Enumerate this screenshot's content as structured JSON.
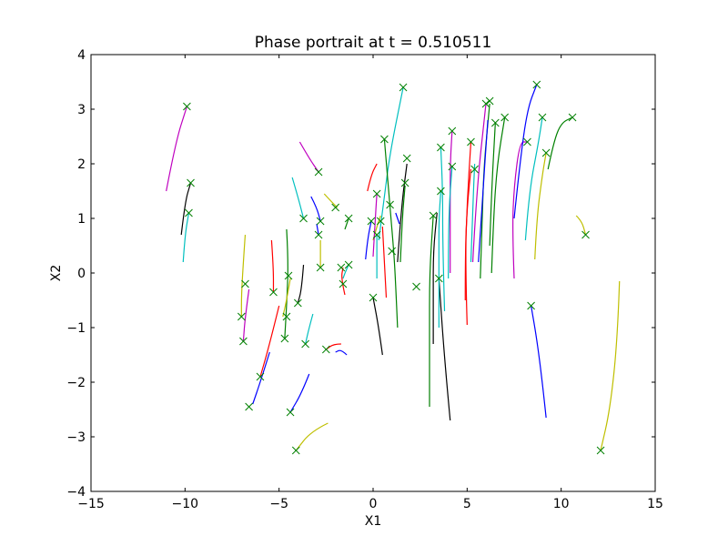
{
  "chart_data": {
    "type": "line",
    "title": "Phase portrait at t = 0.510511",
    "xlabel": "X1",
    "ylabel": "X2",
    "xlim": [
      -15,
      15
    ],
    "ylim": [
      -4,
      4
    ],
    "xticks": [
      -15,
      -10,
      -5,
      0,
      5,
      10,
      15
    ],
    "yticks": [
      -4,
      -3,
      -2,
      -1,
      0,
      1,
      2,
      3,
      4
    ],
    "xtick_labels": [
      "−15",
      "−10",
      "−5",
      "0",
      "5",
      "10",
      "15"
    ],
    "ytick_labels": [
      "−4",
      "−3",
      "−2",
      "−1",
      "0",
      "1",
      "2",
      "3",
      "4"
    ],
    "grid": false,
    "marker_color": "#008000",
    "series": [
      {
        "color": "#bf00bf",
        "points": [
          [
            -11.0,
            1.5
          ],
          [
            -10.5,
            2.4
          ],
          [
            -9.9,
            3.05
          ]
        ]
      },
      {
        "color": "#000000",
        "points": [
          [
            -10.2,
            0.7
          ],
          [
            -10.0,
            1.3
          ],
          [
            -9.7,
            1.65
          ]
        ]
      },
      {
        "color": "#00bfbf",
        "points": [
          [
            -10.1,
            0.2
          ],
          [
            -10.0,
            0.7
          ],
          [
            -9.8,
            1.1
          ]
        ]
      },
      {
        "color": "#bfbf00",
        "points": [
          [
            -6.8,
            0.7
          ],
          [
            -6.9,
            0.2
          ],
          [
            -7.0,
            -0.4
          ],
          [
            -7.0,
            -0.8
          ]
        ]
      },
      {
        "color": "#bf00bf",
        "points": [
          [
            -6.6,
            -0.3
          ],
          [
            -6.8,
            -0.8
          ],
          [
            -6.9,
            -1.25
          ]
        ]
      },
      {
        "color": "#ff0000",
        "points": [
          [
            -5.4,
            0.6
          ],
          [
            -5.3,
            0.1
          ],
          [
            -5.3,
            -0.35
          ]
        ]
      },
      {
        "color": "#ff0000",
        "points": [
          [
            -5.0,
            -0.6
          ],
          [
            -5.5,
            -1.3
          ],
          [
            -6.0,
            -1.9
          ]
        ]
      },
      {
        "color": "#0000ff",
        "points": [
          [
            -5.5,
            -1.45
          ],
          [
            -6.0,
            -2.0
          ],
          [
            -6.4,
            -2.4
          ]
        ]
      },
      {
        "color": "#008000",
        "points": [
          [
            -4.6,
            0.8
          ],
          [
            -4.5,
            0.2
          ],
          [
            -4.6,
            -0.6
          ],
          [
            -4.7,
            -1.2
          ]
        ]
      },
      {
        "color": "#bfbf00",
        "points": [
          [
            -4.4,
            -0.1
          ],
          [
            -4.6,
            -0.5
          ],
          [
            -4.8,
            -0.8
          ]
        ]
      },
      {
        "color": "#000000",
        "points": [
          [
            -3.7,
            0.15
          ],
          [
            -3.8,
            -0.3
          ],
          [
            -4.0,
            -0.55
          ]
        ]
      },
      {
        "color": "#00bfbf",
        "points": [
          [
            -4.3,
            1.75
          ],
          [
            -4.0,
            1.4
          ],
          [
            -3.7,
            1.0
          ]
        ]
      },
      {
        "color": "#bf00bf",
        "points": [
          [
            -3.9,
            2.4
          ],
          [
            -3.4,
            2.1
          ],
          [
            -2.9,
            1.85
          ]
        ]
      },
      {
        "color": "#0000ff",
        "points": [
          [
            -3.3,
            1.4
          ],
          [
            -3.0,
            1.2
          ],
          [
            -2.8,
            0.95
          ]
        ]
      },
      {
        "color": "#0000ff",
        "points": [
          [
            -3.0,
            0.9
          ],
          [
            -2.9,
            0.7
          ]
        ]
      },
      {
        "color": "#bfbf00",
        "points": [
          [
            -2.8,
            0.6
          ],
          [
            -2.8,
            0.3
          ],
          [
            -2.8,
            0.1
          ]
        ]
      },
      {
        "color": "#00bfbf",
        "points": [
          [
            -3.2,
            -0.75
          ],
          [
            -3.4,
            -1.0
          ],
          [
            -3.6,
            -1.3
          ]
        ]
      },
      {
        "color": "#0000ff",
        "points": [
          [
            -3.4,
            -1.85
          ],
          [
            -3.8,
            -2.2
          ],
          [
            -4.4,
            -2.55
          ]
        ]
      },
      {
        "color": "#bfbf00",
        "points": [
          [
            -2.4,
            -2.75
          ],
          [
            -3.3,
            -2.9
          ],
          [
            -4.1,
            -3.25
          ]
        ]
      },
      {
        "color": "#ff0000",
        "points": [
          [
            -1.7,
            -1.3
          ],
          [
            -2.1,
            -1.3
          ],
          [
            -2.5,
            -1.4
          ]
        ]
      },
      {
        "color": "#0000ff",
        "points": [
          [
            -1.4,
            -1.5
          ],
          [
            -1.7,
            -1.4
          ],
          [
            -2.0,
            -1.45
          ]
        ]
      },
      {
        "color": "#bfbf00",
        "points": [
          [
            -2.6,
            1.45
          ],
          [
            -2.2,
            1.3
          ],
          [
            -1.9,
            1.2
          ]
        ]
      },
      {
        "color": "#008000",
        "points": [
          [
            -1.5,
            0.8
          ],
          [
            -1.3,
            1.0
          ]
        ]
      },
      {
        "color": "#ff0000",
        "points": [
          [
            -1.5,
            -0.4
          ],
          [
            -1.7,
            -0.1
          ],
          [
            -1.6,
            0.1
          ]
        ]
      },
      {
        "color": "#00bfbf",
        "points": [
          [
            -1.6,
            -0.1
          ],
          [
            -1.5,
            0.0
          ],
          [
            -1.3,
            0.15
          ]
        ]
      },
      {
        "color": "#0000ff",
        "points": [
          [
            -0.4,
            0.25
          ],
          [
            -0.3,
            0.6
          ],
          [
            -0.1,
            0.95
          ]
        ]
      },
      {
        "color": "#ff0000",
        "points": [
          [
            -0.3,
            1.5
          ],
          [
            -0.1,
            1.8
          ],
          [
            0.2,
            2.0
          ]
        ]
      },
      {
        "color": "#bfbf00",
        "points": [
          [
            0.0,
            0.6
          ],
          [
            0.2,
            0.85
          ],
          [
            0.4,
            1.05
          ]
        ]
      },
      {
        "color": "#000000",
        "points": [
          [
            0.5,
            -1.5
          ],
          [
            0.3,
            -1.0
          ],
          [
            0.0,
            -0.45
          ]
        ]
      },
      {
        "color": "#00bfbf",
        "points": [
          [
            0.2,
            -0.1
          ],
          [
            0.2,
            0.3
          ],
          [
            0.2,
            0.7
          ]
        ]
      },
      {
        "color": "#ff0000",
        "points": [
          [
            0.7,
            -0.45
          ],
          [
            0.6,
            0.2
          ],
          [
            0.5,
            0.85
          ]
        ]
      },
      {
        "color": "#bf00bf",
        "points": [
          [
            0.0,
            0.3
          ],
          [
            0.1,
            0.9
          ],
          [
            0.2,
            1.45
          ]
        ]
      },
      {
        "color": "#00bfbf",
        "points": [
          [
            0.3,
            0.6
          ],
          [
            0.6,
            1.4
          ],
          [
            0.9,
            2.2
          ],
          [
            1.6,
            3.4
          ]
        ]
      },
      {
        "color": "#008000",
        "points": [
          [
            1.3,
            -1.0
          ],
          [
            1.2,
            -0.2
          ],
          [
            1.1,
            0.4
          ],
          [
            0.9,
            1.2
          ],
          [
            0.6,
            2.45
          ]
        ]
      },
      {
        "color": "#000000",
        "points": [
          [
            1.3,
            0.2
          ],
          [
            1.5,
            1.2
          ],
          [
            1.8,
            2.0
          ]
        ]
      },
      {
        "color": "#0000ff",
        "points": [
          [
            1.4,
            0.9
          ],
          [
            1.2,
            1.1
          ]
        ]
      },
      {
        "color": "#008000",
        "points": [
          [
            1.45,
            0.2
          ],
          [
            1.55,
            1.0
          ],
          [
            1.7,
            1.6
          ]
        ]
      },
      {
        "color": "#008000",
        "points": [
          [
            3.0,
            -2.45
          ],
          [
            3.0,
            -1.2
          ],
          [
            3.0,
            0.0
          ],
          [
            3.2,
            1.05
          ]
        ]
      },
      {
        "color": "#000000",
        "points": [
          [
            3.2,
            -1.3
          ],
          [
            3.2,
            -0.4
          ],
          [
            3.2,
            0.4
          ],
          [
            3.4,
            1.1
          ]
        ]
      },
      {
        "color": "#000000",
        "points": [
          [
            4.1,
            -2.7
          ],
          [
            3.8,
            -1.6
          ],
          [
            3.5,
            -0.1
          ]
        ]
      },
      {
        "color": "#00bfbf",
        "points": [
          [
            3.5,
            -1.0
          ],
          [
            3.5,
            0.2
          ],
          [
            3.5,
            1.0
          ],
          [
            3.6,
            1.5
          ]
        ]
      },
      {
        "color": "#00bfbf",
        "points": [
          [
            3.8,
            -0.7
          ],
          [
            3.7,
            0.5
          ],
          [
            3.7,
            1.5
          ],
          [
            3.6,
            2.3
          ]
        ]
      },
      {
        "color": "#bf00bf",
        "points": [
          [
            4.1,
            0.0
          ],
          [
            4.1,
            1.0
          ],
          [
            4.1,
            2.0
          ],
          [
            4.2,
            2.6
          ]
        ]
      },
      {
        "color": "#00bfbf",
        "points": [
          [
            4.0,
            -0.1
          ],
          [
            4.0,
            1.0
          ],
          [
            4.2,
            1.95
          ]
        ]
      },
      {
        "color": "#ff0000",
        "points": [
          [
            5.0,
            -0.95
          ],
          [
            4.9,
            0.2
          ],
          [
            5.0,
            1.3
          ],
          [
            5.2,
            2.4
          ]
        ]
      },
      {
        "color": "#ff0000",
        "points": [
          [
            4.9,
            -0.5
          ],
          [
            4.9,
            0.4
          ],
          [
            5.0,
            1.2
          ],
          [
            5.2,
            1.9
          ]
        ]
      },
      {
        "color": "#00bfbf",
        "points": [
          [
            5.2,
            0.2
          ],
          [
            5.3,
            1.2
          ],
          [
            5.4,
            2.0
          ]
        ]
      },
      {
        "color": "#008000",
        "points": [
          [
            5.7,
            -0.1
          ],
          [
            5.8,
            1.0
          ],
          [
            5.9,
            2.0
          ],
          [
            6.2,
            3.1
          ]
        ]
      },
      {
        "color": "#bf00bf",
        "points": [
          [
            5.3,
            0.2
          ],
          [
            5.5,
            1.5
          ],
          [
            6.0,
            3.1
          ]
        ]
      },
      {
        "color": "#0000ff",
        "points": [
          [
            5.6,
            0.2
          ],
          [
            5.8,
            1.3
          ],
          [
            6.1,
            2.8
          ]
        ]
      },
      {
        "color": "#008000",
        "points": [
          [
            6.3,
            0.0
          ],
          [
            6.4,
            1.0
          ],
          [
            6.6,
            2.0
          ],
          [
            7.0,
            2.85
          ]
        ]
      },
      {
        "color": "#008000",
        "points": [
          [
            6.2,
            0.5
          ],
          [
            6.3,
            1.5
          ],
          [
            6.5,
            2.75
          ]
        ]
      },
      {
        "color": "#bf00bf",
        "points": [
          [
            7.5,
            -0.1
          ],
          [
            7.4,
            0.8
          ],
          [
            7.5,
            1.6
          ],
          [
            7.8,
            2.4
          ],
          [
            8.2,
            2.4
          ]
        ]
      },
      {
        "color": "#0000ff",
        "points": [
          [
            7.5,
            1.0
          ],
          [
            7.8,
            2.0
          ],
          [
            8.2,
            3.0
          ],
          [
            8.7,
            3.45
          ]
        ]
      },
      {
        "color": "#00bfbf",
        "points": [
          [
            8.1,
            0.6
          ],
          [
            8.3,
            1.5
          ],
          [
            8.8,
            2.4
          ],
          [
            9.0,
            2.85
          ]
        ]
      },
      {
        "color": "#bfbf00",
        "points": [
          [
            8.6,
            0.25
          ],
          [
            8.7,
            1.0
          ],
          [
            9.0,
            1.8
          ],
          [
            9.2,
            2.2
          ]
        ]
      },
      {
        "color": "#008000",
        "points": [
          [
            9.3,
            1.9
          ],
          [
            9.6,
            2.4
          ],
          [
            10.0,
            2.75
          ],
          [
            10.6,
            2.85
          ]
        ]
      },
      {
        "color": "#0000ff",
        "points": [
          [
            9.2,
            -2.65
          ],
          [
            9.0,
            -2.0
          ],
          [
            8.7,
            -1.2
          ],
          [
            8.4,
            -0.6
          ]
        ]
      },
      {
        "color": "#bfbf00",
        "points": [
          [
            10.8,
            1.05
          ],
          [
            11.1,
            0.95
          ],
          [
            11.3,
            0.7
          ]
        ]
      },
      {
        "color": "#bfbf00",
        "points": [
          [
            13.1,
            -0.15
          ],
          [
            13.0,
            -1.2
          ],
          [
            12.6,
            -2.5
          ],
          [
            12.1,
            -3.25
          ]
        ]
      }
    ],
    "markers": [
      [
        -9.9,
        3.05
      ],
      [
        -9.7,
        1.65
      ],
      [
        -9.8,
        1.1
      ],
      [
        -7.0,
        -0.8
      ],
      [
        -6.9,
        -1.25
      ],
      [
        -6.8,
        -0.2
      ],
      [
        -6.6,
        -2.45
      ],
      [
        -6.0,
        -1.9
      ],
      [
        -5.3,
        -0.35
      ],
      [
        -4.7,
        -1.2
      ],
      [
        -4.5,
        -0.05
      ],
      [
        -4.4,
        -2.55
      ],
      [
        -4.6,
        -0.8
      ],
      [
        -4.0,
        -0.55
      ],
      [
        -3.7,
        1.0
      ],
      [
        -3.6,
        -1.3
      ],
      [
        -4.1,
        -3.25
      ],
      [
        -2.9,
        1.85
      ],
      [
        -2.8,
        0.95
      ],
      [
        -2.9,
        0.7
      ],
      [
        -2.8,
        0.1
      ],
      [
        -2.5,
        -1.4
      ],
      [
        -2.0,
        1.2
      ],
      [
        -1.7,
        0.1
      ],
      [
        -1.6,
        -0.2
      ],
      [
        -1.3,
        0.15
      ],
      [
        -1.3,
        1.0
      ],
      [
        -0.1,
        0.95
      ],
      [
        0.0,
        -0.45
      ],
      [
        0.2,
        1.45
      ],
      [
        0.4,
        0.95
      ],
      [
        0.2,
        0.7
      ],
      [
        0.6,
        2.45
      ],
      [
        0.9,
        1.25
      ],
      [
        1.0,
        0.4
      ],
      [
        1.6,
        3.4
      ],
      [
        1.8,
        2.1
      ],
      [
        1.7,
        1.65
      ],
      [
        2.3,
        -0.25
      ],
      [
        3.2,
        1.05
      ],
      [
        3.5,
        -0.1
      ],
      [
        3.6,
        1.5
      ],
      [
        3.6,
        2.3
      ],
      [
        4.2,
        2.6
      ],
      [
        4.2,
        1.95
      ],
      [
        5.2,
        2.4
      ],
      [
        5.4,
        1.9
      ],
      [
        6.0,
        3.1
      ],
      [
        6.2,
        3.15
      ],
      [
        6.5,
        2.75
      ],
      [
        7.0,
        2.85
      ],
      [
        8.2,
        2.4
      ],
      [
        8.7,
        3.45
      ],
      [
        9.0,
        2.85
      ],
      [
        9.2,
        2.2
      ],
      [
        10.6,
        2.85
      ],
      [
        8.4,
        -0.6
      ],
      [
        11.3,
        0.7
      ],
      [
        12.1,
        -3.25
      ]
    ]
  }
}
